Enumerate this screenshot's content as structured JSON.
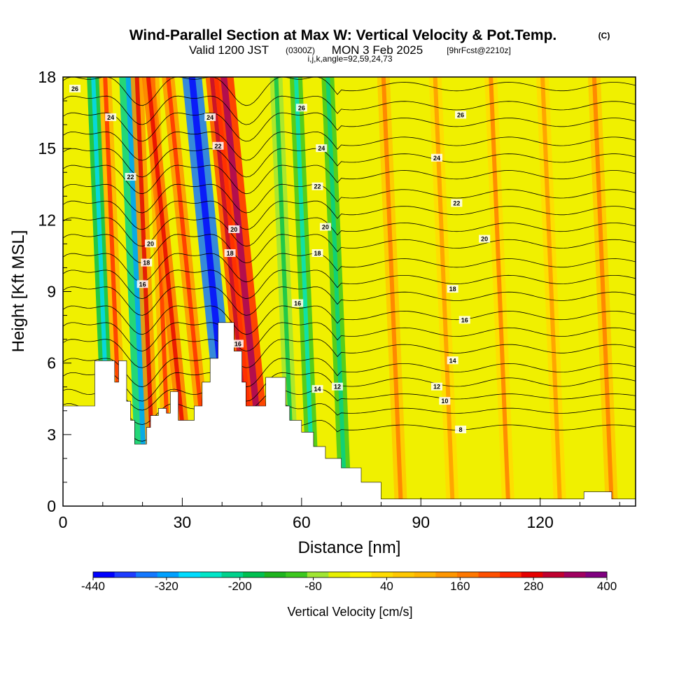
{
  "title": {
    "main": "Wind-Parallel Section at Max W: Vertical Velocity & Pot.Temp.",
    "copyright": "(C)",
    "valid_prefix": "Valid 1200 JST",
    "valid_utc": "(0300Z)",
    "valid_date": "MON 3 Feb 2025",
    "forecast": "[9hrFcst@2210z]",
    "params": "i,j,k,angle=92,59,24,73"
  },
  "chart_data": {
    "type": "heatmap",
    "xlabel": "Distance [nm]",
    "ylabel": "Height [Kft MSL]",
    "xlim": [
      0,
      144
    ],
    "ylim": [
      0,
      18
    ],
    "x_ticks": [
      0,
      30,
      60,
      90,
      120
    ],
    "x_tick_labels": [
      "0",
      "30",
      "60",
      "90",
      "120"
    ],
    "y_ticks": [
      0,
      3,
      6,
      9,
      12,
      15,
      18
    ],
    "y_tick_labels": [
      "0",
      "3",
      "6",
      "9",
      "12",
      "15",
      "18"
    ],
    "colorbar": {
      "title": "Vertical Velocity [cm/s]",
      "tick_labels": [
        "-440",
        "-320",
        "-200",
        "-80",
        "40",
        "160",
        "280",
        "400"
      ],
      "colors": [
        "#0000ff",
        "#1e3cff",
        "#1478ff",
        "#00a0ff",
        "#00dcff",
        "#00e6c8",
        "#00d28c",
        "#00c050",
        "#1eb41e",
        "#3cc81e",
        "#a0e632",
        "#e6f000",
        "#fff500",
        "#ffdc00",
        "#ffc800",
        "#ffb400",
        "#ff9600",
        "#ff7800",
        "#ff5000",
        "#ff2800",
        "#e60000",
        "#c00030",
        "#a00060",
        "#800080"
      ]
    },
    "updraft_bands": [
      {
        "x": 12,
        "w": -180
      },
      {
        "x": 15,
        "w": 120
      },
      {
        "x": 21,
        "w": -220
      },
      {
        "x": 23,
        "w": 160
      },
      {
        "x": 27,
        "w": 120
      },
      {
        "x": 32,
        "w": 180
      },
      {
        "x": 37,
        "w": 140
      },
      {
        "x": 43,
        "w": -360
      },
      {
        "x": 48,
        "w": 200
      },
      {
        "x": 51,
        "w": 260
      },
      {
        "x": 58,
        "w": -80
      },
      {
        "x": 63,
        "w": -120
      },
      {
        "x": 71,
        "w": -100
      },
      {
        "x": 85,
        "w": 60
      },
      {
        "x": 98,
        "w": 40
      },
      {
        "x": 112,
        "w": 50
      },
      {
        "x": 125,
        "w": 40
      },
      {
        "x": 138,
        "w": 60
      }
    ],
    "terrain": [
      [
        0,
        4.2
      ],
      [
        8,
        4.2
      ],
      [
        8,
        6.1
      ],
      [
        12,
        6.1
      ],
      [
        13,
        5.2
      ],
      [
        14,
        6.1
      ],
      [
        16,
        4.4
      ],
      [
        17,
        3.6
      ],
      [
        18,
        2.6
      ],
      [
        20,
        2.6
      ],
      [
        21,
        3.3
      ],
      [
        22,
        3.8
      ],
      [
        24,
        4.1
      ],
      [
        26,
        3.9
      ],
      [
        27,
        4.8
      ],
      [
        29,
        3.6
      ],
      [
        31,
        3.6
      ],
      [
        33,
        4.2
      ],
      [
        35,
        5.2
      ],
      [
        37,
        6.2
      ],
      [
        39,
        7.7
      ],
      [
        41,
        7.7
      ],
      [
        43,
        6.5
      ],
      [
        45,
        5.2
      ],
      [
        46,
        4.2
      ],
      [
        50,
        4.2
      ],
      [
        51,
        5.4
      ],
      [
        54,
        5.4
      ],
      [
        56,
        4.2
      ],
      [
        57,
        3.6
      ],
      [
        60,
        3.1
      ],
      [
        63,
        2.5
      ],
      [
        66,
        2.0
      ],
      [
        70,
        1.6
      ],
      [
        75,
        1.0
      ],
      [
        80,
        0.3
      ],
      [
        100,
        0.3
      ],
      [
        128,
        0.3
      ],
      [
        131,
        0.6
      ],
      [
        136,
        0.6
      ],
      [
        138,
        0.3
      ],
      [
        144,
        0.3
      ]
    ],
    "isentrope_labels": [
      {
        "x": 3,
        "y": 17.5,
        "text": "26"
      },
      {
        "x": 12,
        "y": 16.3,
        "text": "24"
      },
      {
        "x": 17,
        "y": 13.8,
        "text": "22"
      },
      {
        "x": 22,
        "y": 11.0,
        "text": "20"
      },
      {
        "x": 21,
        "y": 10.2,
        "text": "18"
      },
      {
        "x": 20,
        "y": 9.3,
        "text": "16"
      },
      {
        "x": 37,
        "y": 16.3,
        "text": "24"
      },
      {
        "x": 39,
        "y": 15.1,
        "text": "22"
      },
      {
        "x": 43,
        "y": 11.6,
        "text": "20"
      },
      {
        "x": 42,
        "y": 10.6,
        "text": "18"
      },
      {
        "x": 44,
        "y": 6.8,
        "text": "16"
      },
      {
        "x": 60,
        "y": 16.7,
        "text": "26"
      },
      {
        "x": 65,
        "y": 15.0,
        "text": "24"
      },
      {
        "x": 64,
        "y": 13.4,
        "text": "22"
      },
      {
        "x": 66,
        "y": 11.7,
        "text": "20"
      },
      {
        "x": 64,
        "y": 10.6,
        "text": "18"
      },
      {
        "x": 59,
        "y": 8.5,
        "text": "16"
      },
      {
        "x": 64,
        "y": 4.9,
        "text": "14"
      },
      {
        "x": 69,
        "y": 5.0,
        "text": "12"
      },
      {
        "x": 100,
        "y": 16.4,
        "text": "26"
      },
      {
        "x": 94,
        "y": 14.6,
        "text": "24"
      },
      {
        "x": 99,
        "y": 12.7,
        "text": "22"
      },
      {
        "x": 106,
        "y": 11.2,
        "text": "20"
      },
      {
        "x": 98,
        "y": 9.1,
        "text": "18"
      },
      {
        "x": 101,
        "y": 7.8,
        "text": "16"
      },
      {
        "x": 98,
        "y": 6.1,
        "text": "14"
      },
      {
        "x": 94,
        "y": 5.0,
        "text": "12"
      },
      {
        "x": 96,
        "y": 4.4,
        "text": "10"
      },
      {
        "x": 100,
        "y": 3.2,
        "text": "8"
      }
    ]
  }
}
